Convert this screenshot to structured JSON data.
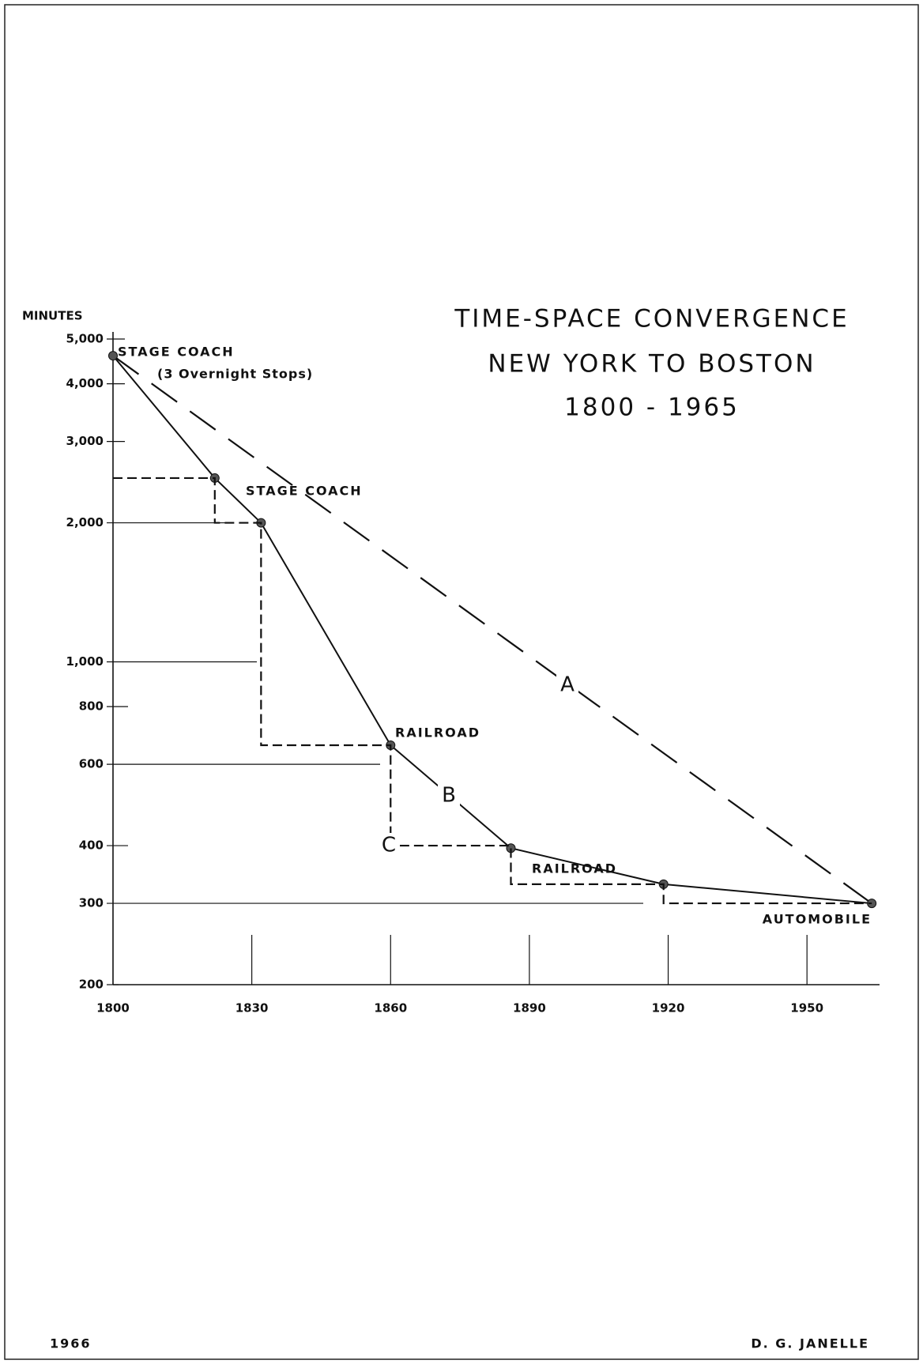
{
  "chart_data": {
    "type": "line",
    "title": [
      "TIME-SPACE CONVERGENCE",
      "NEW YORK TO BOSTON",
      "1800 - 1965"
    ],
    "y_label": "MINUTES",
    "log_y": true,
    "xlim": [
      1800,
      1965
    ],
    "xticks": [
      1800,
      1830,
      1860,
      1890,
      1920,
      1950
    ],
    "ylim": [
      200,
      5000
    ],
    "yticks": [
      {
        "value": 5000,
        "label": "5,000"
      },
      {
        "value": 4000,
        "label": "4,000"
      },
      {
        "value": 3000,
        "label": "3,000"
      },
      {
        "value": 2000,
        "label": "2,000"
      },
      {
        "value": 1000,
        "label": "1,000"
      },
      800,
      600,
      400,
      300,
      200
    ],
    "series": [
      {
        "name": "A",
        "color": "#111111",
        "x": [
          1800,
          1964
        ],
        "values": [
          4600,
          300
        ]
      },
      {
        "name": "B",
        "color": "#111111",
        "x": [
          1800,
          1822,
          1832,
          1860,
          1886,
          1919,
          1964
        ],
        "values": [
          4600,
          2500,
          2000,
          660,
          395,
          330,
          300
        ]
      },
      {
        "name": "C",
        "color": "#111111",
        "x": [
          1800,
          1822,
          1822,
          1832,
          1832,
          1860,
          1860,
          1886,
          1886,
          1919,
          1919,
          1964
        ],
        "values": [
          2500,
          2500,
          2000,
          2000,
          660,
          660,
          400,
          400,
          330,
          330,
          300,
          300
        ]
      }
    ],
    "annotations": [
      "STAGE COACH",
      "(3 Overnight Stops)",
      "STAGE COACH",
      "RAILROAD",
      "RAILROAD",
      "AUTOMOBILE"
    ],
    "footer_left": "1966",
    "footer_right": "D. G. JANELLE"
  }
}
